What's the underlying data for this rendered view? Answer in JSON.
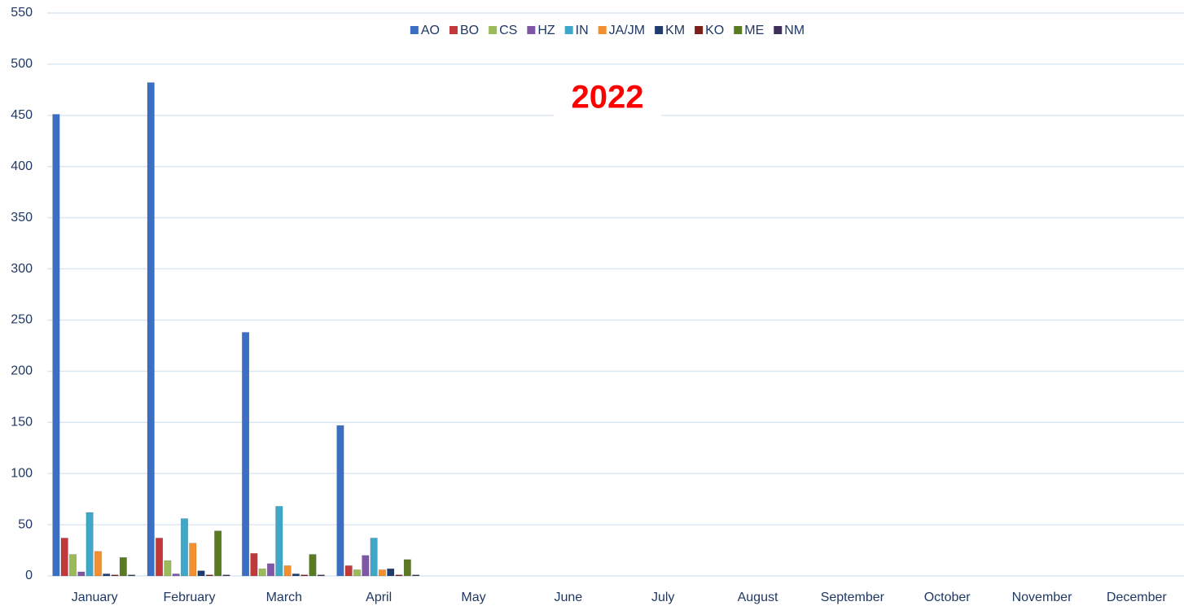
{
  "chart_data": {
    "type": "bar",
    "title": "2022",
    "categories": [
      "January",
      "February",
      "March",
      "April",
      "May",
      "June",
      "July",
      "August",
      "September",
      "October",
      "November",
      "December"
    ],
    "series": [
      {
        "name": "AO",
        "color": "#3a6fc4",
        "values": [
          451,
          482,
          238,
          147,
          null,
          null,
          null,
          null,
          null,
          null,
          null,
          null
        ]
      },
      {
        "name": "BO",
        "color": "#c0393b",
        "values": [
          37,
          37,
          22,
          10,
          null,
          null,
          null,
          null,
          null,
          null,
          null,
          null
        ]
      },
      {
        "name": "CS",
        "color": "#9bbb59",
        "values": [
          21,
          15,
          7,
          6,
          null,
          null,
          null,
          null,
          null,
          null,
          null,
          null
        ]
      },
      {
        "name": "HZ",
        "color": "#7e57a8",
        "values": [
          4,
          2,
          12,
          20,
          null,
          null,
          null,
          null,
          null,
          null,
          null,
          null
        ]
      },
      {
        "name": "IN",
        "color": "#3fa7c8",
        "values": [
          62,
          56,
          68,
          37,
          null,
          null,
          null,
          null,
          null,
          null,
          null,
          null
        ]
      },
      {
        "name": "JA/JM",
        "color": "#f38f2f",
        "values": [
          24,
          32,
          10,
          6,
          null,
          null,
          null,
          null,
          null,
          null,
          null,
          null
        ]
      },
      {
        "name": "KM",
        "color": "#1f3c6e",
        "values": [
          2,
          5,
          2,
          7,
          null,
          null,
          null,
          null,
          null,
          null,
          null,
          null
        ]
      },
      {
        "name": "KO",
        "color": "#7b1f1a",
        "values": [
          1,
          1,
          1,
          1,
          null,
          null,
          null,
          null,
          null,
          null,
          null,
          null
        ]
      },
      {
        "name": "ME",
        "color": "#5a7a24",
        "values": [
          18,
          44,
          21,
          16,
          null,
          null,
          null,
          null,
          null,
          null,
          null,
          null
        ]
      },
      {
        "name": "NM",
        "color": "#3f2f5c",
        "values": [
          1,
          1,
          1,
          1,
          null,
          null,
          null,
          null,
          null,
          null,
          null,
          null
        ]
      }
    ],
    "ylim": [
      0,
      550
    ],
    "yticks": [
      0,
      50,
      100,
      150,
      200,
      250,
      300,
      350,
      400,
      450,
      500,
      550
    ],
    "grid": true,
    "legend": "top",
    "title_color": "#ff0000"
  }
}
